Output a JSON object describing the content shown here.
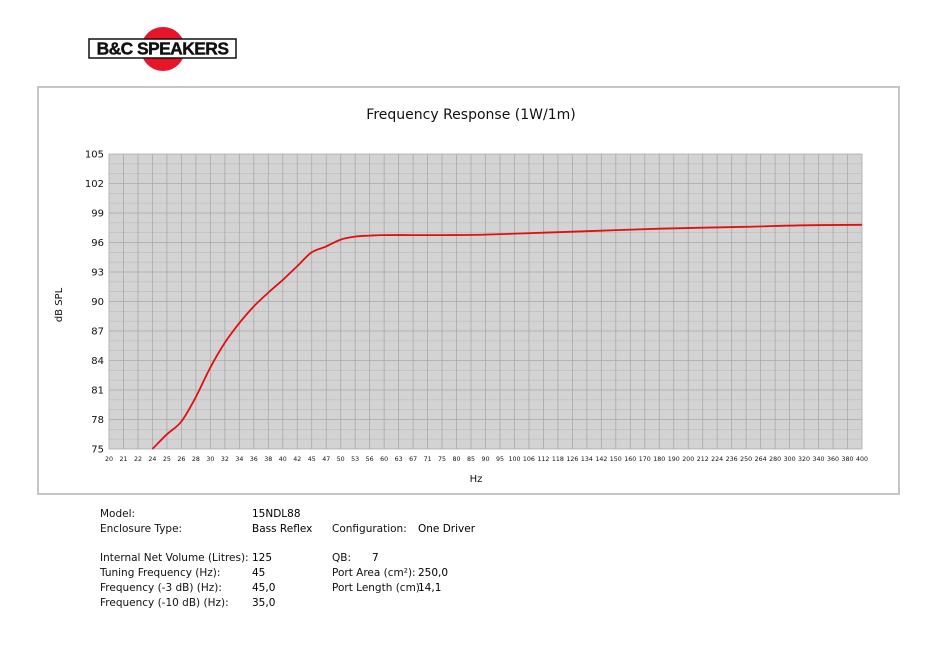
{
  "brand": {
    "logo_text": "B&C SPEAKERS"
  },
  "chart_data": {
    "type": "line",
    "title": "Frequency Response (1W/1m)",
    "xlabel": "Hz",
    "ylabel": "dB SPL",
    "ylim": [
      75,
      105
    ],
    "yticks": [
      75,
      78,
      81,
      84,
      87,
      90,
      93,
      96,
      99,
      102,
      105
    ],
    "x_scale": "log",
    "xlim": [
      20,
      400
    ],
    "xticks": [
      20,
      21,
      22,
      24,
      25,
      26,
      28,
      30,
      32,
      34,
      36,
      38,
      40,
      42,
      45,
      47,
      50,
      53,
      56,
      60,
      63,
      67,
      71,
      75,
      80,
      85,
      90,
      95,
      100,
      106,
      112,
      118,
      126,
      134,
      142,
      150,
      160,
      170,
      180,
      190,
      200,
      212,
      224,
      236,
      250,
      264,
      280,
      300,
      320,
      340,
      360,
      380,
      400
    ],
    "grid": true,
    "colors": {
      "curve": "#e01010",
      "plot_bg": "#d3d3d3",
      "grid": "#a9a9a9"
    },
    "series": [
      {
        "x": [
          24,
          25,
          26,
          28,
          30,
          32,
          34,
          36,
          38,
          40,
          42,
          45,
          47,
          50,
          53,
          56,
          60,
          67,
          75,
          90,
          112,
          142,
          180,
          250,
          320,
          400
        ],
        "y": [
          75.0,
          76.5,
          77.8,
          80.3,
          83.3,
          85.8,
          87.8,
          89.5,
          90.9,
          92.2,
          93.6,
          95.0,
          95.6,
          96.3,
          96.6,
          96.7,
          96.75,
          96.75,
          96.75,
          96.8,
          97.0,
          97.2,
          97.4,
          97.6,
          97.75,
          97.8
        ]
      }
    ]
  },
  "specs": {
    "model_label": "Model:",
    "model_value": "15NDL88",
    "enclosure_label": "Enclosure Type:",
    "enclosure_value": "Bass Reflex",
    "config_label": "Configuration:",
    "config_value": "One Driver",
    "volume_label": "Internal Net Volume (Litres):",
    "volume_value": "125",
    "tuning_label": "Tuning Frequency (Hz):",
    "tuning_value": "45",
    "f3_label": "Frequency (-3 dB) (Hz):",
    "f3_value": "45,0",
    "f10_label": "Frequency (-10 dB) (Hz):",
    "f10_value": "35,0",
    "qb_label": "QB:",
    "qb_value": "7",
    "port_area_label": "Port Area (cm²):",
    "port_area_value": "250,0",
    "port_length_label": "Port Length (cm):",
    "port_length_value": "14,1"
  }
}
